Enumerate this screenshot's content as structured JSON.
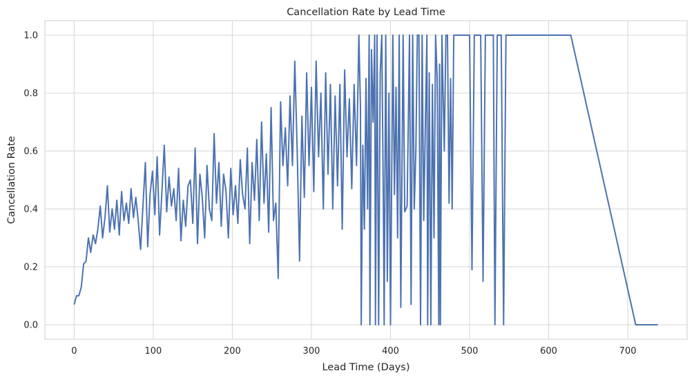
{
  "chart_data": {
    "type": "line",
    "title": "Cancellation Rate by Lead Time",
    "xlabel": "Lead Time (Days)",
    "ylabel": "Cancellation Rate",
    "xlim": [
      -37,
      775
    ],
    "ylim": [
      -0.05,
      1.05
    ],
    "xticks": [
      0,
      100,
      200,
      300,
      400,
      500,
      600,
      700
    ],
    "yticks": [
      0.0,
      0.2,
      0.4,
      0.6,
      0.8,
      1.0
    ],
    "grid": true,
    "line_color": "#4c72b0",
    "series": [
      {
        "name": "Cancellation Rate",
        "points": [
          [
            0,
            0.07
          ],
          [
            3,
            0.1
          ],
          [
            6,
            0.1
          ],
          [
            9,
            0.13
          ],
          [
            12,
            0.21
          ],
          [
            15,
            0.22
          ],
          [
            18,
            0.3
          ],
          [
            21,
            0.25
          ],
          [
            24,
            0.31
          ],
          [
            27,
            0.28
          ],
          [
            30,
            0.33
          ],
          [
            33,
            0.41
          ],
          [
            36,
            0.3
          ],
          [
            39,
            0.37
          ],
          [
            42,
            0.48
          ],
          [
            45,
            0.32
          ],
          [
            48,
            0.4
          ],
          [
            51,
            0.33
          ],
          [
            54,
            0.43
          ],
          [
            57,
            0.31
          ],
          [
            60,
            0.46
          ],
          [
            63,
            0.36
          ],
          [
            66,
            0.42
          ],
          [
            69,
            0.35
          ],
          [
            72,
            0.47
          ],
          [
            75,
            0.37
          ],
          [
            78,
            0.44
          ],
          [
            81,
            0.36
          ],
          [
            84,
            0.26
          ],
          [
            87,
            0.41
          ],
          [
            90,
            0.56
          ],
          [
            93,
            0.27
          ],
          [
            96,
            0.45
          ],
          [
            99,
            0.53
          ],
          [
            102,
            0.38
          ],
          [
            105,
            0.58
          ],
          [
            108,
            0.31
          ],
          [
            111,
            0.46
          ],
          [
            114,
            0.62
          ],
          [
            117,
            0.39
          ],
          [
            120,
            0.51
          ],
          [
            123,
            0.41
          ],
          [
            126,
            0.47
          ],
          [
            129,
            0.36
          ],
          [
            132,
            0.54
          ],
          [
            135,
            0.29
          ],
          [
            138,
            0.43
          ],
          [
            141,
            0.34
          ],
          [
            144,
            0.48
          ],
          [
            147,
            0.5
          ],
          [
            150,
            0.35
          ],
          [
            153,
            0.61
          ],
          [
            156,
            0.28
          ],
          [
            159,
            0.52
          ],
          [
            162,
            0.44
          ],
          [
            165,
            0.3
          ],
          [
            168,
            0.55
          ],
          [
            171,
            0.4
          ],
          [
            174,
            0.36
          ],
          [
            177,
            0.66
          ],
          [
            180,
            0.42
          ],
          [
            183,
            0.56
          ],
          [
            186,
            0.34
          ],
          [
            189,
            0.52
          ],
          [
            192,
            0.46
          ],
          [
            195,
            0.3
          ],
          [
            198,
            0.54
          ],
          [
            201,
            0.38
          ],
          [
            204,
            0.48
          ],
          [
            207,
            0.35
          ],
          [
            210,
            0.57
          ],
          [
            213,
            0.45
          ],
          [
            216,
            0.4
          ],
          [
            219,
            0.61
          ],
          [
            222,
            0.28
          ],
          [
            225,
            0.56
          ],
          [
            228,
            0.43
          ],
          [
            231,
            0.64
          ],
          [
            234,
            0.36
          ],
          [
            237,
            0.7
          ],
          [
            240,
            0.42
          ],
          [
            243,
            0.59
          ],
          [
            246,
            0.32
          ],
          [
            249,
            0.75
          ],
          [
            252,
            0.36
          ],
          [
            255,
            0.42
          ],
          [
            258,
            0.16
          ],
          [
            261,
            0.77
          ],
          [
            264,
            0.55
          ],
          [
            267,
            0.68
          ],
          [
            270,
            0.48
          ],
          [
            273,
            0.79
          ],
          [
            276,
            0.55
          ],
          [
            279,
            0.91
          ],
          [
            282,
            0.6
          ],
          [
            285,
            0.22
          ],
          [
            288,
            0.72
          ],
          [
            291,
            0.44
          ],
          [
            294,
            0.87
          ],
          [
            297,
            0.55
          ],
          [
            300,
            0.82
          ],
          [
            303,
            0.46
          ],
          [
            306,
            0.91
          ],
          [
            309,
            0.58
          ],
          [
            312,
            0.8
          ],
          [
            315,
            0.4
          ],
          [
            318,
            0.87
          ],
          [
            321,
            0.52
          ],
          [
            324,
            0.83
          ],
          [
            327,
            0.4
          ],
          [
            330,
            0.79
          ],
          [
            333,
            0.48
          ],
          [
            336,
            0.83
          ],
          [
            339,
            0.33
          ],
          [
            342,
            0.88
          ],
          [
            345,
            0.58
          ],
          [
            348,
            0.78
          ],
          [
            351,
            0.47
          ],
          [
            354,
            0.83
          ],
          [
            357,
            0.55
          ],
          [
            360,
            1.0
          ],
          [
            362,
            0.75
          ],
          [
            363,
            0.0
          ],
          [
            365,
            0.62
          ],
          [
            367,
            0.33
          ],
          [
            369,
            0.85
          ],
          [
            371,
            0.4
          ],
          [
            373,
            1.0
          ],
          [
            374,
            0.0
          ],
          [
            376,
            0.95
          ],
          [
            378,
            0.7
          ],
          [
            380,
            1.0
          ],
          [
            381,
            0.0
          ],
          [
            383,
            1.0
          ],
          [
            385,
            0.0
          ],
          [
            387,
            0.87
          ],
          [
            389,
            1.0
          ],
          [
            391,
            0.4
          ],
          [
            392,
            0.0
          ],
          [
            394,
            1.0
          ],
          [
            396,
            0.15
          ],
          [
            398,
            0.8
          ],
          [
            400,
            0.0
          ],
          [
            403,
            1.0
          ],
          [
            405,
            0.45
          ],
          [
            407,
            0.82
          ],
          [
            409,
            0.3
          ],
          [
            411,
            1.0
          ],
          [
            413,
            0.06
          ],
          [
            416,
            1.0
          ],
          [
            418,
            0.39
          ],
          [
            421,
            0.41
          ],
          [
            424,
            1.0
          ],
          [
            426,
            0.07
          ],
          [
            428,
            1.0
          ],
          [
            430,
            0.4
          ],
          [
            432,
            0.6
          ],
          [
            434,
            1.0
          ],
          [
            436,
            1.0
          ],
          [
            438,
            0.0
          ],
          [
            440,
            1.0
          ],
          [
            442,
            0.36
          ],
          [
            444,
            0.68
          ],
          [
            446,
            1.0
          ],
          [
            447,
            0.0
          ],
          [
            449,
            0.87
          ],
          [
            451,
            0.0
          ],
          [
            453,
            0.83
          ],
          [
            455,
            0.3
          ],
          [
            457,
            1.0
          ],
          [
            459,
            0.85
          ],
          [
            461,
            0.0
          ],
          [
            462,
            0.9
          ],
          [
            463,
            0.0
          ],
          [
            465,
            1.0
          ],
          [
            468,
            0.6
          ],
          [
            470,
            1.0
          ],
          [
            472,
            1.0
          ],
          [
            474,
            0.42
          ],
          [
            476,
            0.85
          ],
          [
            478,
            0.4
          ],
          [
            480,
            1.0
          ],
          [
            500,
            1.0
          ],
          [
            503,
            0.19
          ],
          [
            506,
            1.0
          ],
          [
            514,
            1.0
          ],
          [
            517,
            0.15
          ],
          [
            520,
            1.0
          ],
          [
            530,
            1.0
          ],
          [
            532,
            0.0
          ],
          [
            535,
            1.0
          ],
          [
            540,
            1.0
          ],
          [
            543,
            0.0
          ],
          [
            546,
            1.0
          ],
          [
            628,
            1.0
          ],
          [
            710,
            0.0
          ],
          [
            738,
            0.0
          ]
        ]
      }
    ]
  }
}
